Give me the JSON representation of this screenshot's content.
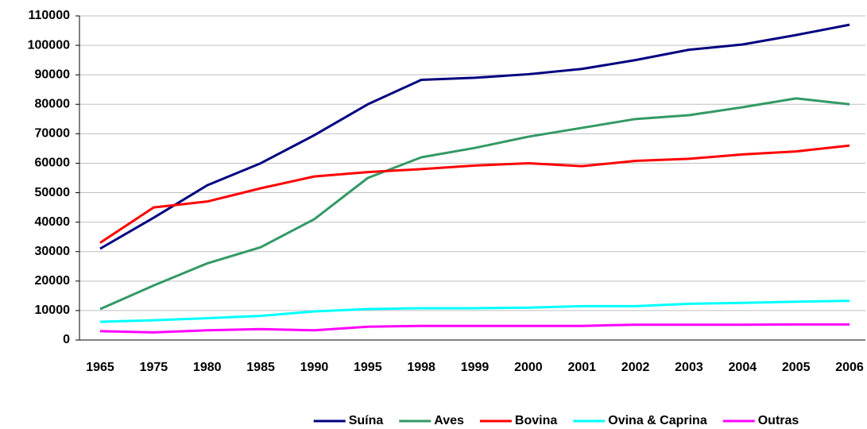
{
  "chart_data": {
    "type": "line",
    "categories": [
      "1965",
      "1975",
      "1980",
      "1985",
      "1990",
      "1995",
      "1998",
      "1999",
      "2000",
      "2001",
      "2002",
      "2003",
      "2004",
      "2005",
      "2006"
    ],
    "series": [
      {
        "name": "Suína",
        "color": "#000080",
        "values": [
          31000,
          41500,
          52500,
          60000,
          69500,
          80000,
          88300,
          89000,
          90200,
          92000,
          95000,
          98500,
          100300,
          103500,
          107000
        ]
      },
      {
        "name": "Aves",
        "color": "#339966",
        "values": [
          10500,
          18500,
          26000,
          31500,
          41000,
          55000,
          62000,
          65200,
          69000,
          72000,
          75000,
          76300,
          79000,
          82000,
          80000
        ]
      },
      {
        "name": "Bovina",
        "color": "#ff0000",
        "values": [
          33000,
          45000,
          47000,
          51500,
          55500,
          57000,
          58000,
          59200,
          60000,
          59000,
          60800,
          61500,
          63000,
          64000,
          66000
        ]
      },
      {
        "name": "Ovina & Caprina",
        "color": "#00ffff",
        "values": [
          6200,
          6700,
          7400,
          8200,
          9700,
          10500,
          10800,
          10800,
          11000,
          11500,
          11500,
          12300,
          12600,
          13000,
          13300
        ]
      },
      {
        "name": "Outras",
        "color": "#ff00ff",
        "values": [
          3000,
          2600,
          3300,
          3700,
          3300,
          4500,
          4800,
          4800,
          4800,
          4800,
          5200,
          5200,
          5200,
          5300,
          5300
        ]
      }
    ],
    "ylim": [
      0,
      110000
    ],
    "yticks": [
      0,
      10000,
      20000,
      30000,
      40000,
      50000,
      60000,
      70000,
      80000,
      90000,
      100000,
      110000
    ],
    "grid": true,
    "legend": "bottom"
  }
}
